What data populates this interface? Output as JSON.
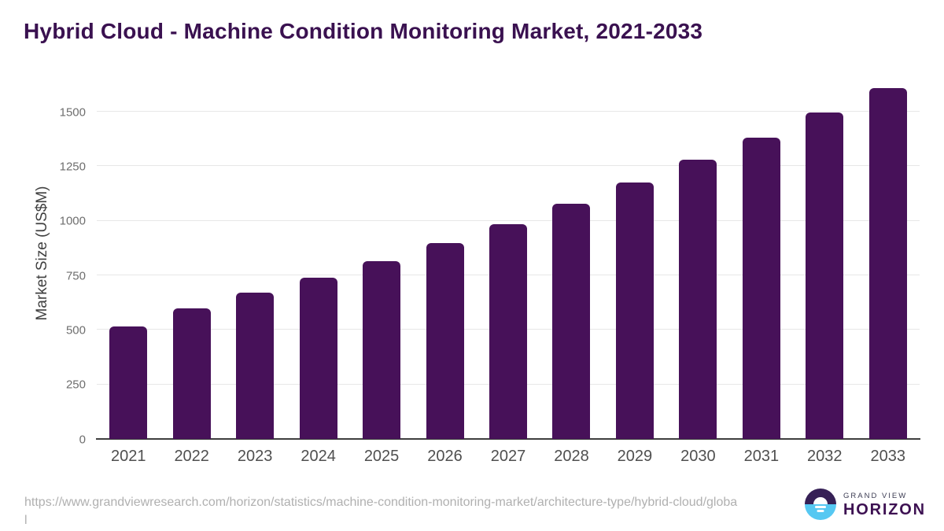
{
  "header": {
    "title": "Hybrid Cloud - Machine Condition Monitoring Market, 2021-2033"
  },
  "chart_data": {
    "type": "bar",
    "title": "Hybrid Cloud - Machine Condition Monitoring Market, 2021-2033",
    "xlabel": "",
    "ylabel": "Market Size (US$M)",
    "categories": [
      "2021",
      "2022",
      "2023",
      "2024",
      "2025",
      "2026",
      "2027",
      "2028",
      "2029",
      "2030",
      "2031",
      "2032",
      "2033"
    ],
    "values": [
      517,
      600,
      672,
      741,
      815,
      898,
      986,
      1077,
      1174,
      1279,
      1382,
      1496,
      1610
    ],
    "yticks": [
      0,
      250,
      500,
      750,
      1000,
      1250,
      1500
    ],
    "ylim": [
      0,
      1637
    ],
    "grid": true,
    "legend": false,
    "bar_color": "#471159"
  },
  "footer": {
    "source_url": "https://www.grandviewresearch.com/horizon/statistics/machine-condition-monitoring-market/architecture-type/hybrid-cloud/global",
    "brand": {
      "top": "GRAND VIEW",
      "bottom": "HORIZON"
    }
  },
  "colors": {
    "bar": "#471159",
    "title": "#3a1150",
    "axis_labels": "#6e6e6e",
    "x_labels": "#4f4f4f",
    "y_axis_title": "#404040",
    "gridline": "#e7e7e7",
    "axis_line": "#3f3f3f",
    "url_text": "#b0b0b0",
    "logo_dark": "#362056",
    "logo_blue": "#56c8f2",
    "brand_top_text": "#3b3b52",
    "brand_bottom_text": "#3d1152"
  }
}
